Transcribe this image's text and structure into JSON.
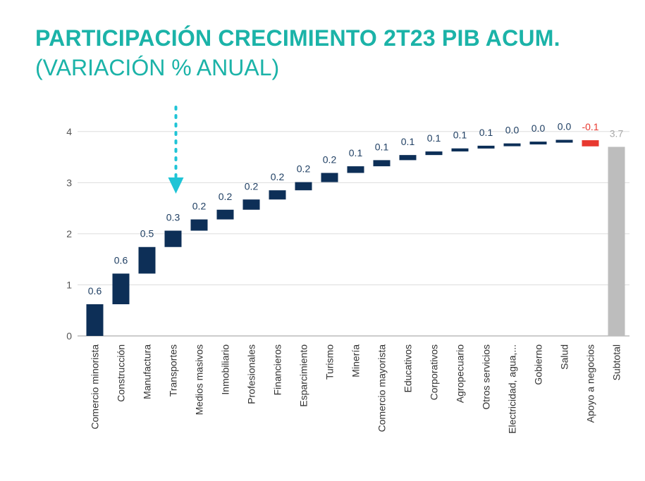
{
  "title": "PARTICIPACIÓN CRECIMIENTO 2T23 PIB ACUM.",
  "subtitle": "(VARIACIÓN % ANUAL)",
  "colors": {
    "positive": "#0d2f57",
    "negative": "#e8382f",
    "total": "#bdbdbd",
    "accent": "#1bb3a8",
    "arrow": "#1fc4d6"
  },
  "chart_data": {
    "type": "waterfall",
    "ylim": [
      0,
      4.3
    ],
    "yticks": [
      0,
      1,
      2,
      3,
      4
    ],
    "categories": [
      "Comercio minorista",
      "Construcción",
      "Manufactura",
      "Transportes",
      "Medios masivos",
      "Inmobiliario",
      "Profesionales",
      "Financieros",
      "Esparcimiento",
      "Turismo",
      "Minería",
      "Comercio mayorista",
      "Educativos",
      "Corporativos",
      "Agropecuario",
      "Otros servicios",
      "Electricidad, agua,...",
      "Gobierno",
      "Salud",
      "Apoyo a negocios",
      "Subtotal"
    ],
    "values": [
      0.62,
      0.6,
      0.52,
      0.32,
      0.22,
      0.19,
      0.2,
      0.18,
      0.16,
      0.18,
      0.13,
      0.12,
      0.1,
      0.07,
      0.06,
      0.05,
      0.04,
      0.03,
      0.04,
      -0.12,
      3.7
    ],
    "labels": [
      "0.6",
      "0.6",
      "0.5",
      "0.3",
      "0.2",
      "0.2",
      "0.2",
      "0.2",
      "0.2",
      "0.2",
      "0.1",
      "0.1",
      "0.1",
      "0.1",
      "0.1",
      "0.1",
      "0.0",
      "0.0",
      "0.0",
      "-0.1",
      "3.7"
    ],
    "total_index": 20,
    "highlight_index": 3
  }
}
